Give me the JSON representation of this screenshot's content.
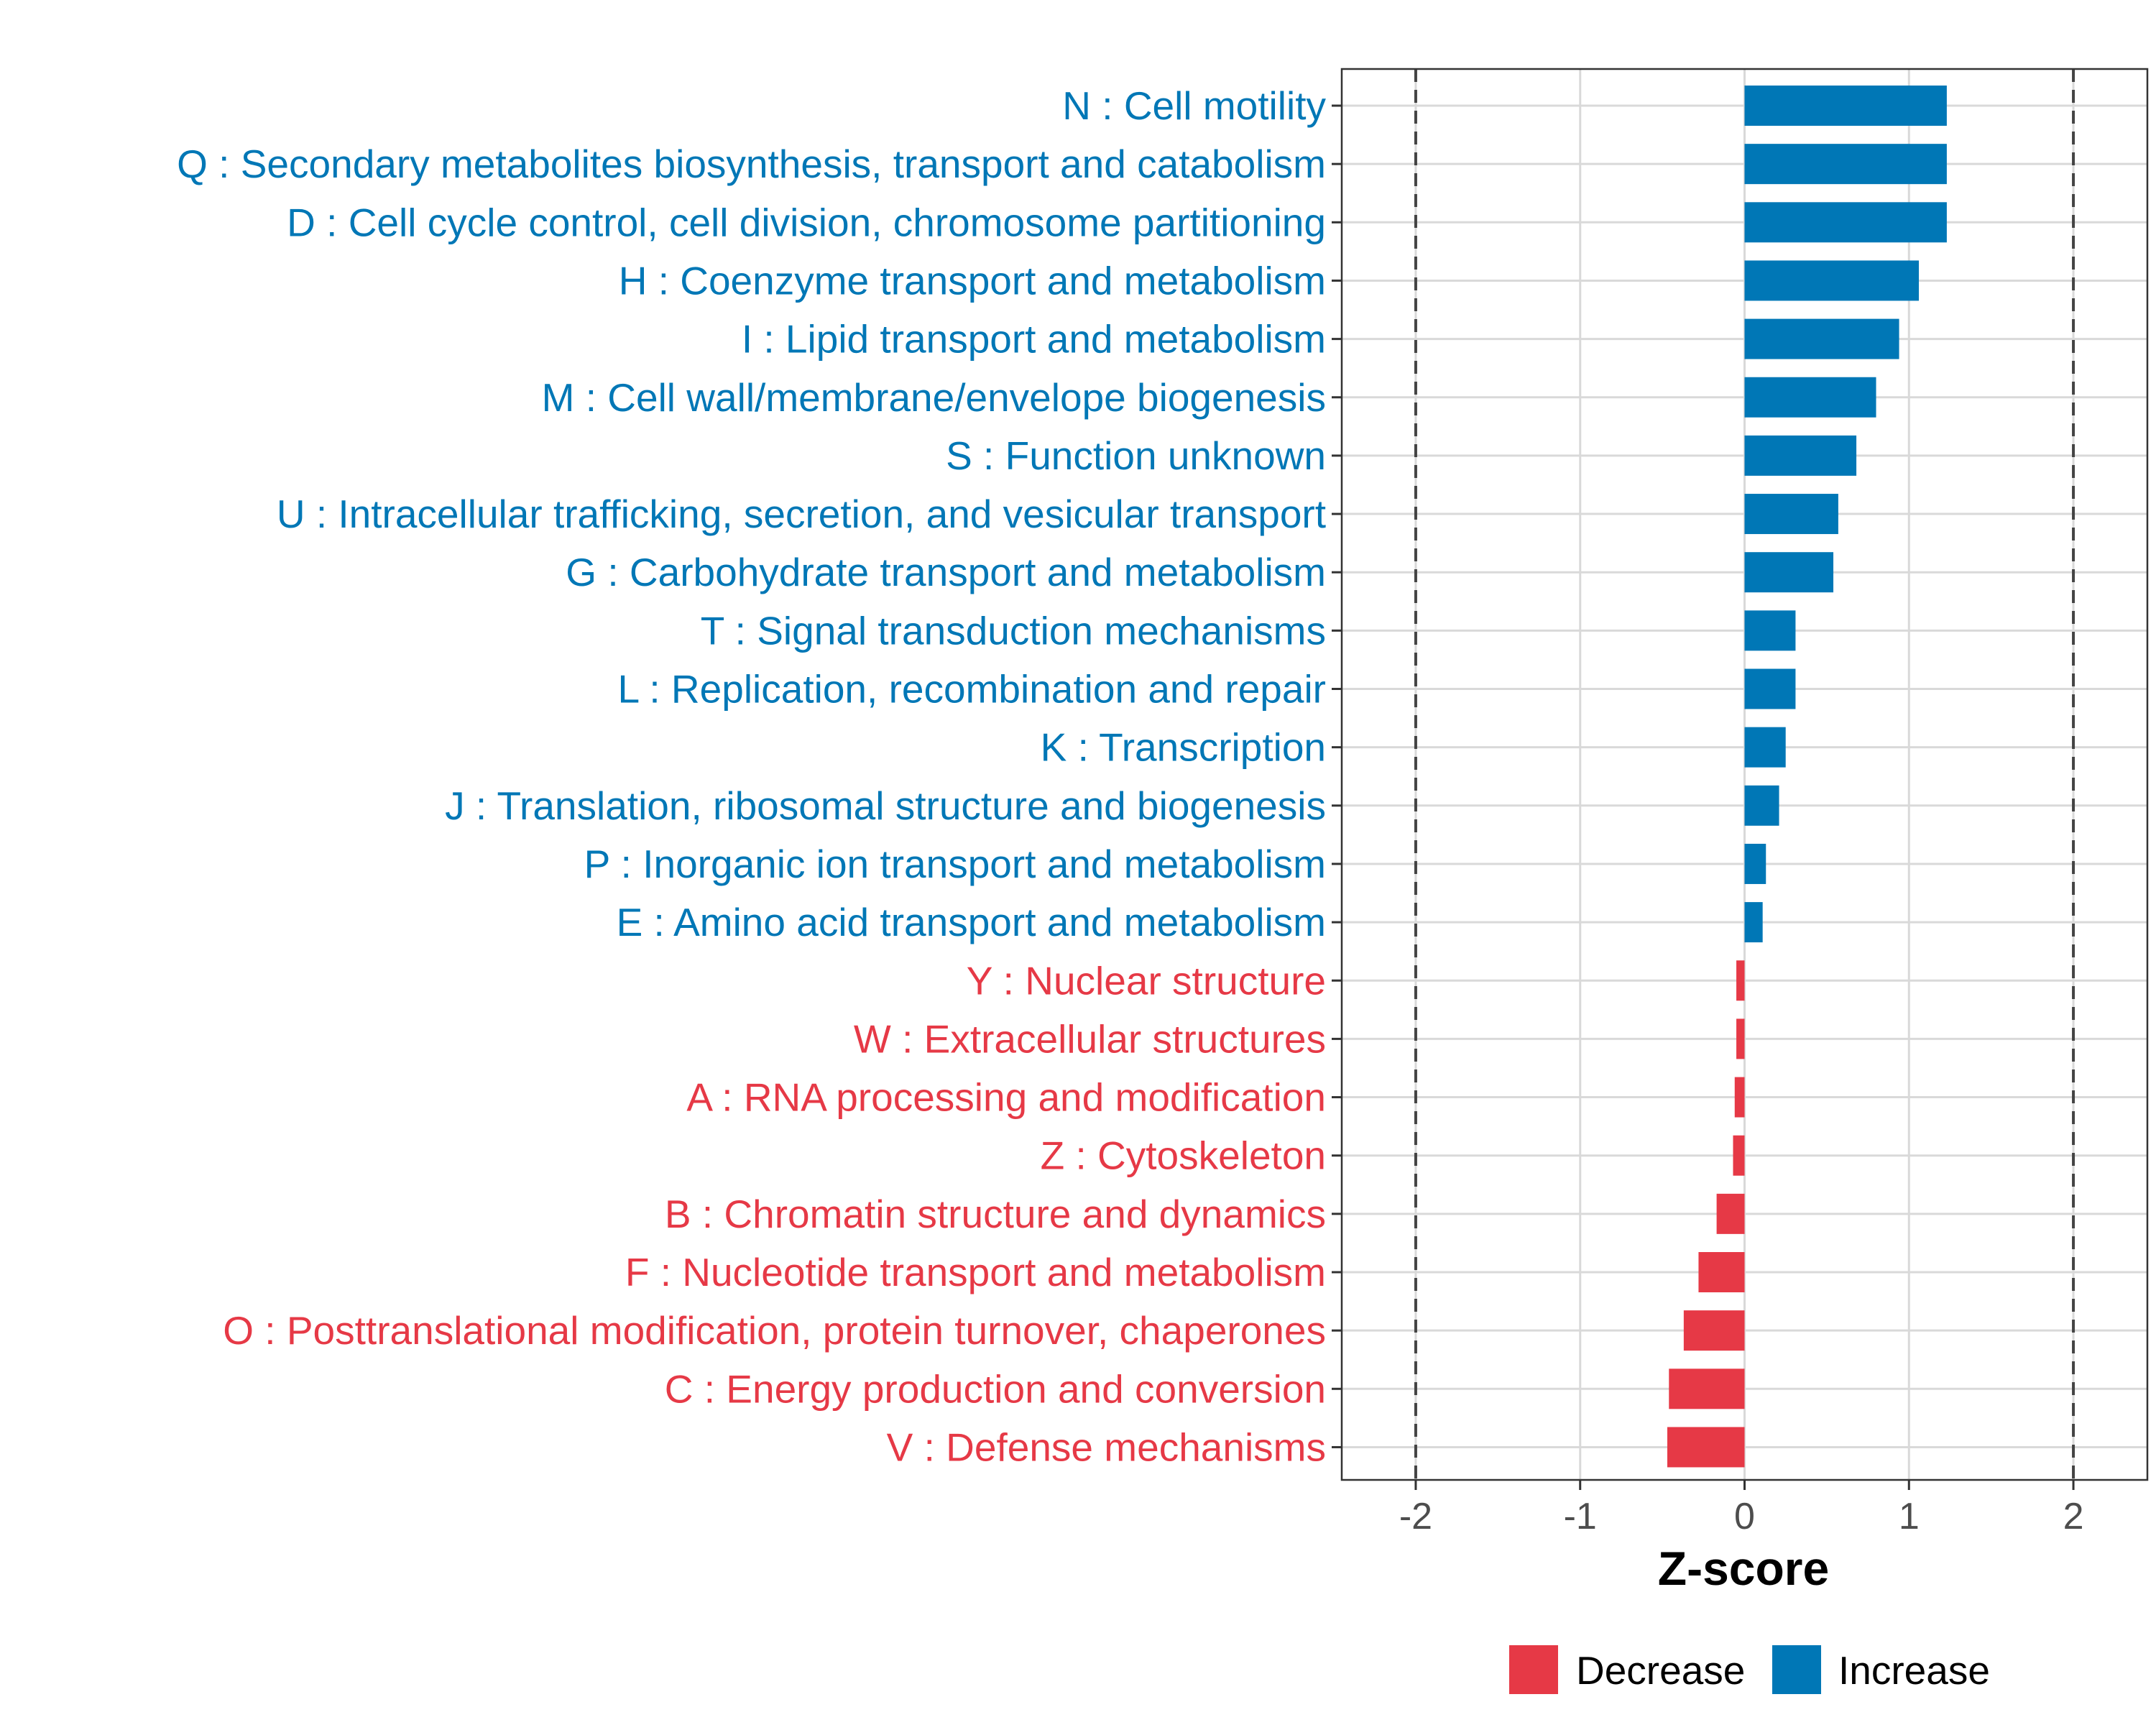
{
  "chart_data": {
    "type": "bar",
    "orientation": "horizontal",
    "xlabel": "Z-score",
    "xlim": [
      -2.45,
      2.45
    ],
    "xticks": [
      -2,
      -1,
      0,
      1,
      2
    ],
    "xtick_labels": [
      "-2",
      "-1",
      "0",
      "1",
      "2"
    ],
    "reference_lines": [
      -2,
      2
    ],
    "grid": true,
    "categories": [
      "N : Cell motility",
      "Q : Secondary metabolites biosynthesis, transport and catabolism",
      "D : Cell cycle control, cell division, chromosome partitioning",
      "H : Coenzyme transport and metabolism",
      "I : Lipid transport and metabolism",
      "M : Cell wall/membrane/envelope biogenesis",
      "S : Function unknown",
      "U : Intracellular trafficking, secretion, and vesicular transport",
      "G : Carbohydrate transport and metabolism",
      "T : Signal transduction mechanisms",
      "L : Replication, recombination and repair",
      "K : Transcription",
      "J : Translation, ribosomal structure and biogenesis",
      "P : Inorganic ion transport and metabolism",
      "E : Amino acid transport and metabolism",
      "Y : Nuclear structure",
      "W : Extracellular structures",
      "A : RNA processing and modification",
      "Z : Cytoskeleton",
      "B : Chromatin structure and dynamics",
      "F : Nucleotide transport and metabolism",
      "O : Posttranslational modification, protein turnover, chaperones",
      "C : Energy production and conversion",
      "V : Defense mechanisms"
    ],
    "values": [
      1.23,
      1.23,
      1.23,
      1.06,
      0.94,
      0.8,
      0.68,
      0.57,
      0.54,
      0.31,
      0.31,
      0.25,
      0.21,
      0.13,
      0.11,
      -0.05,
      -0.05,
      -0.06,
      -0.07,
      -0.17,
      -0.28,
      -0.37,
      -0.46,
      -0.47
    ],
    "groups": [
      "Increase",
      "Increase",
      "Increase",
      "Increase",
      "Increase",
      "Increase",
      "Increase",
      "Increase",
      "Increase",
      "Increase",
      "Increase",
      "Increase",
      "Increase",
      "Increase",
      "Increase",
      "Decrease",
      "Decrease",
      "Decrease",
      "Decrease",
      "Decrease",
      "Decrease",
      "Decrease",
      "Decrease",
      "Decrease"
    ],
    "legend": {
      "position": "bottom",
      "entries": [
        {
          "name": "Decrease",
          "color": "#E63946"
        },
        {
          "name": "Increase",
          "color": "#0077B6"
        }
      ]
    }
  }
}
